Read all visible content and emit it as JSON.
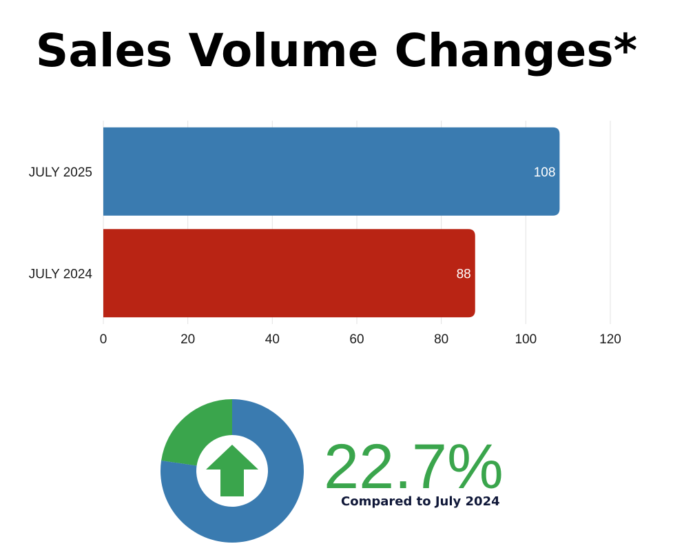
{
  "title": "Sales Volume Changes*",
  "colors": {
    "blue": "#3a7bb0",
    "red": "#b92414",
    "green": "#3aa54c",
    "navy": "#0f1738",
    "grid": "#e2e2e2"
  },
  "chart_data": [
    {
      "type": "bar",
      "orientation": "horizontal",
      "categories": [
        "JULY 2025",
        "JULY 2024"
      ],
      "values": [
        108,
        88
      ],
      "bar_colors": [
        "#3a7bb0",
        "#b92414"
      ],
      "data_labels": [
        "108",
        "88"
      ],
      "xlim": [
        0,
        120
      ],
      "x_ticks": [
        0,
        20,
        40,
        60,
        80,
        100,
        120
      ],
      "grid": "vertical",
      "title": "",
      "xlabel": "",
      "ylabel": ""
    },
    {
      "type": "pie",
      "style": "donut",
      "values": [
        22.7,
        77.3
      ],
      "slice_colors": [
        "#3aa54c",
        "#3a7bb0"
      ],
      "center_icon": "arrow-up-icon"
    }
  ],
  "change": {
    "percent_text": "22.7%",
    "caption": "Compared to July 2024"
  }
}
